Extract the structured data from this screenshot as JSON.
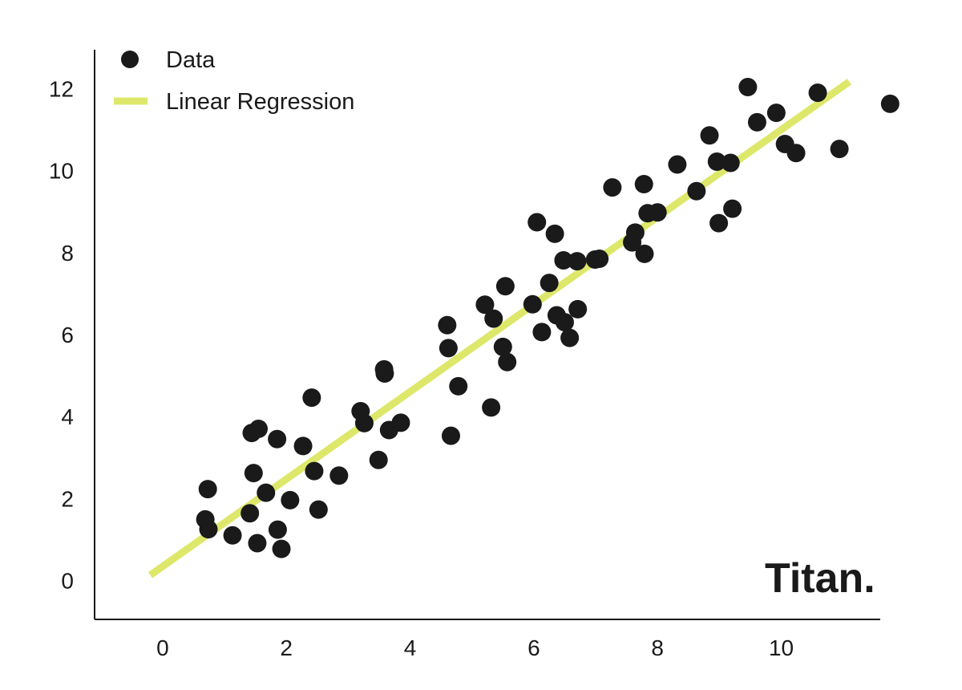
{
  "brand": {
    "text": "Titan."
  },
  "colors": {
    "points": "#1a1a1a",
    "regression": "#dde86a",
    "axis": "#1a1a1a",
    "background": "#ffffff"
  },
  "chart_data": {
    "type": "scatter",
    "title": "",
    "xlabel": "",
    "ylabel": "",
    "xlim": [
      -1.1,
      11.6
    ],
    "ylim": [
      -0.95,
      12.95
    ],
    "xticks": [
      0,
      2,
      4,
      6,
      8,
      10
    ],
    "yticks": [
      0,
      2,
      4,
      6,
      8,
      10,
      12
    ],
    "xtick_labels": [
      "0",
      "2",
      "4",
      "6",
      "8",
      "10"
    ],
    "ytick_labels": [
      "0",
      "2",
      "4",
      "6",
      "8",
      "10",
      "12"
    ],
    "grid": false,
    "legend": {
      "position": "top-left",
      "entries": [
        {
          "label": "Data",
          "marker": "circle"
        },
        {
          "label": "Linear Regression",
          "marker": "line"
        }
      ]
    },
    "series": [
      {
        "name": "Data",
        "kind": "points",
        "x": [
          0.69,
          0.73,
          0.74,
          1.13,
          1.41,
          1.44,
          1.47,
          1.53,
          1.55,
          1.67,
          1.85,
          1.86,
          1.92,
          2.06,
          2.27,
          2.41,
          2.45,
          2.52,
          2.85,
          3.2,
          3.26,
          3.49,
          3.58,
          3.59,
          3.66,
          3.85,
          4.6,
          4.62,
          4.66,
          4.78,
          5.21,
          5.31,
          5.35,
          5.5,
          5.54,
          5.57,
          5.98,
          6.05,
          6.13,
          6.25,
          6.34,
          6.37,
          6.48,
          6.5,
          6.58,
          6.7,
          6.71,
          6.99,
          7.06,
          7.27,
          7.59,
          7.64,
          7.78,
          7.79,
          7.84,
          8.0,
          8.32,
          8.63,
          8.84,
          8.96,
          8.99,
          9.18,
          9.21,
          9.46,
          9.61,
          9.92,
          10.06,
          10.24,
          10.59,
          10.94,
          11.76
        ],
        "y": [
          1.49,
          2.23,
          1.25,
          1.1,
          1.64,
          3.6,
          2.62,
          0.91,
          3.7,
          2.14,
          3.45,
          1.24,
          0.77,
          1.96,
          3.28,
          4.46,
          2.67,
          1.73,
          2.56,
          4.13,
          3.84,
          2.94,
          5.15,
          5.05,
          3.67,
          3.85,
          6.23,
          5.67,
          3.53,
          4.74,
          6.73,
          4.22,
          6.39,
          5.7,
          7.18,
          5.33,
          6.74,
          8.74,
          6.06,
          7.26,
          8.46,
          6.47,
          7.81,
          6.3,
          5.92,
          7.79,
          6.62,
          7.83,
          7.85,
          9.59,
          8.25,
          8.49,
          9.67,
          7.97,
          8.96,
          8.98,
          10.15,
          9.5,
          10.86,
          10.22,
          8.72,
          10.19,
          9.07,
          12.04,
          11.18,
          11.41,
          10.65,
          10.43,
          11.9,
          10.53,
          11.63
        ]
      },
      {
        "name": "Linear Regression",
        "kind": "line",
        "x": [
          -0.2,
          11.1
        ],
        "y": [
          0.13,
          12.17
        ]
      }
    ]
  }
}
